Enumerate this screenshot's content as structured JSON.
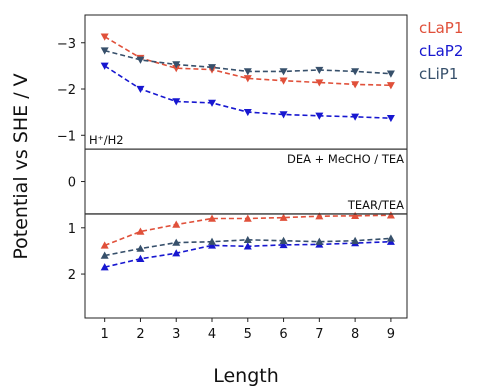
{
  "chart_data": {
    "type": "line",
    "xlabel": "Length",
    "ylabel": "Potential vs SHE / V",
    "x": [
      1,
      2,
      3,
      4,
      5,
      6,
      7,
      8,
      9
    ],
    "xlim": [
      0.45,
      9.45
    ],
    "ylim": [
      2.95,
      -3.6
    ],
    "y_inverted": true,
    "x_ticks": [
      1,
      2,
      3,
      4,
      5,
      6,
      7,
      8,
      9
    ],
    "y_ticks": [
      -3,
      -2,
      -1,
      0,
      1,
      2
    ],
    "y_tick_labels": [
      "−3",
      "−2",
      "−1",
      "0",
      "1",
      "2"
    ],
    "grid": false,
    "legend_position": "outside-right-top",
    "reference_lines": [
      {
        "y": -0.7,
        "label": "H⁺/H2"
      },
      {
        "y": 0.7,
        "label": "TEAR/TEA"
      }
    ],
    "region_labels": [
      {
        "y": 0.7,
        "label": "DEA + MeCHO / TEA"
      }
    ],
    "reduction_series": [
      {
        "name": "cLaP1",
        "color": "#e0503a",
        "marker": "triangle-down",
        "values": [
          -3.13,
          -2.67,
          -2.45,
          -2.42,
          -2.23,
          -2.18,
          -2.14,
          -2.1,
          -2.08
        ]
      },
      {
        "name": "cLaP2",
        "color": "#1717d0",
        "marker": "triangle-down",
        "values": [
          -2.5,
          -2.0,
          -1.73,
          -1.7,
          -1.5,
          -1.45,
          -1.42,
          -1.4,
          -1.37
        ]
      },
      {
        "name": "cLiP1",
        "color": "#37506b",
        "marker": "triangle-down",
        "values": [
          -2.83,
          -2.63,
          -2.53,
          -2.47,
          -2.38,
          -2.38,
          -2.41,
          -2.38,
          -2.33
        ]
      }
    ],
    "oxidation_series": [
      {
        "name": "cLaP1",
        "color": "#e0503a",
        "marker": "triangle-up",
        "values": [
          1.38,
          1.08,
          0.93,
          0.8,
          0.8,
          0.78,
          0.75,
          0.74,
          0.73
        ]
      },
      {
        "name": "cLaP2",
        "color": "#1717d0",
        "marker": "triangle-up",
        "values": [
          1.85,
          1.67,
          1.55,
          1.38,
          1.4,
          1.37,
          1.36,
          1.33,
          1.3
        ]
      },
      {
        "name": "cLiP1",
        "color": "#37506b",
        "marker": "triangle-up",
        "values": [
          1.6,
          1.45,
          1.32,
          1.3,
          1.26,
          1.28,
          1.3,
          1.28,
          1.23
        ]
      }
    ],
    "legend": [
      {
        "name": "cLaP1",
        "color": "#e0503a"
      },
      {
        "name": "cLaP2",
        "color": "#1717d0"
      },
      {
        "name": "cLiP1",
        "color": "#37506b"
      }
    ]
  }
}
